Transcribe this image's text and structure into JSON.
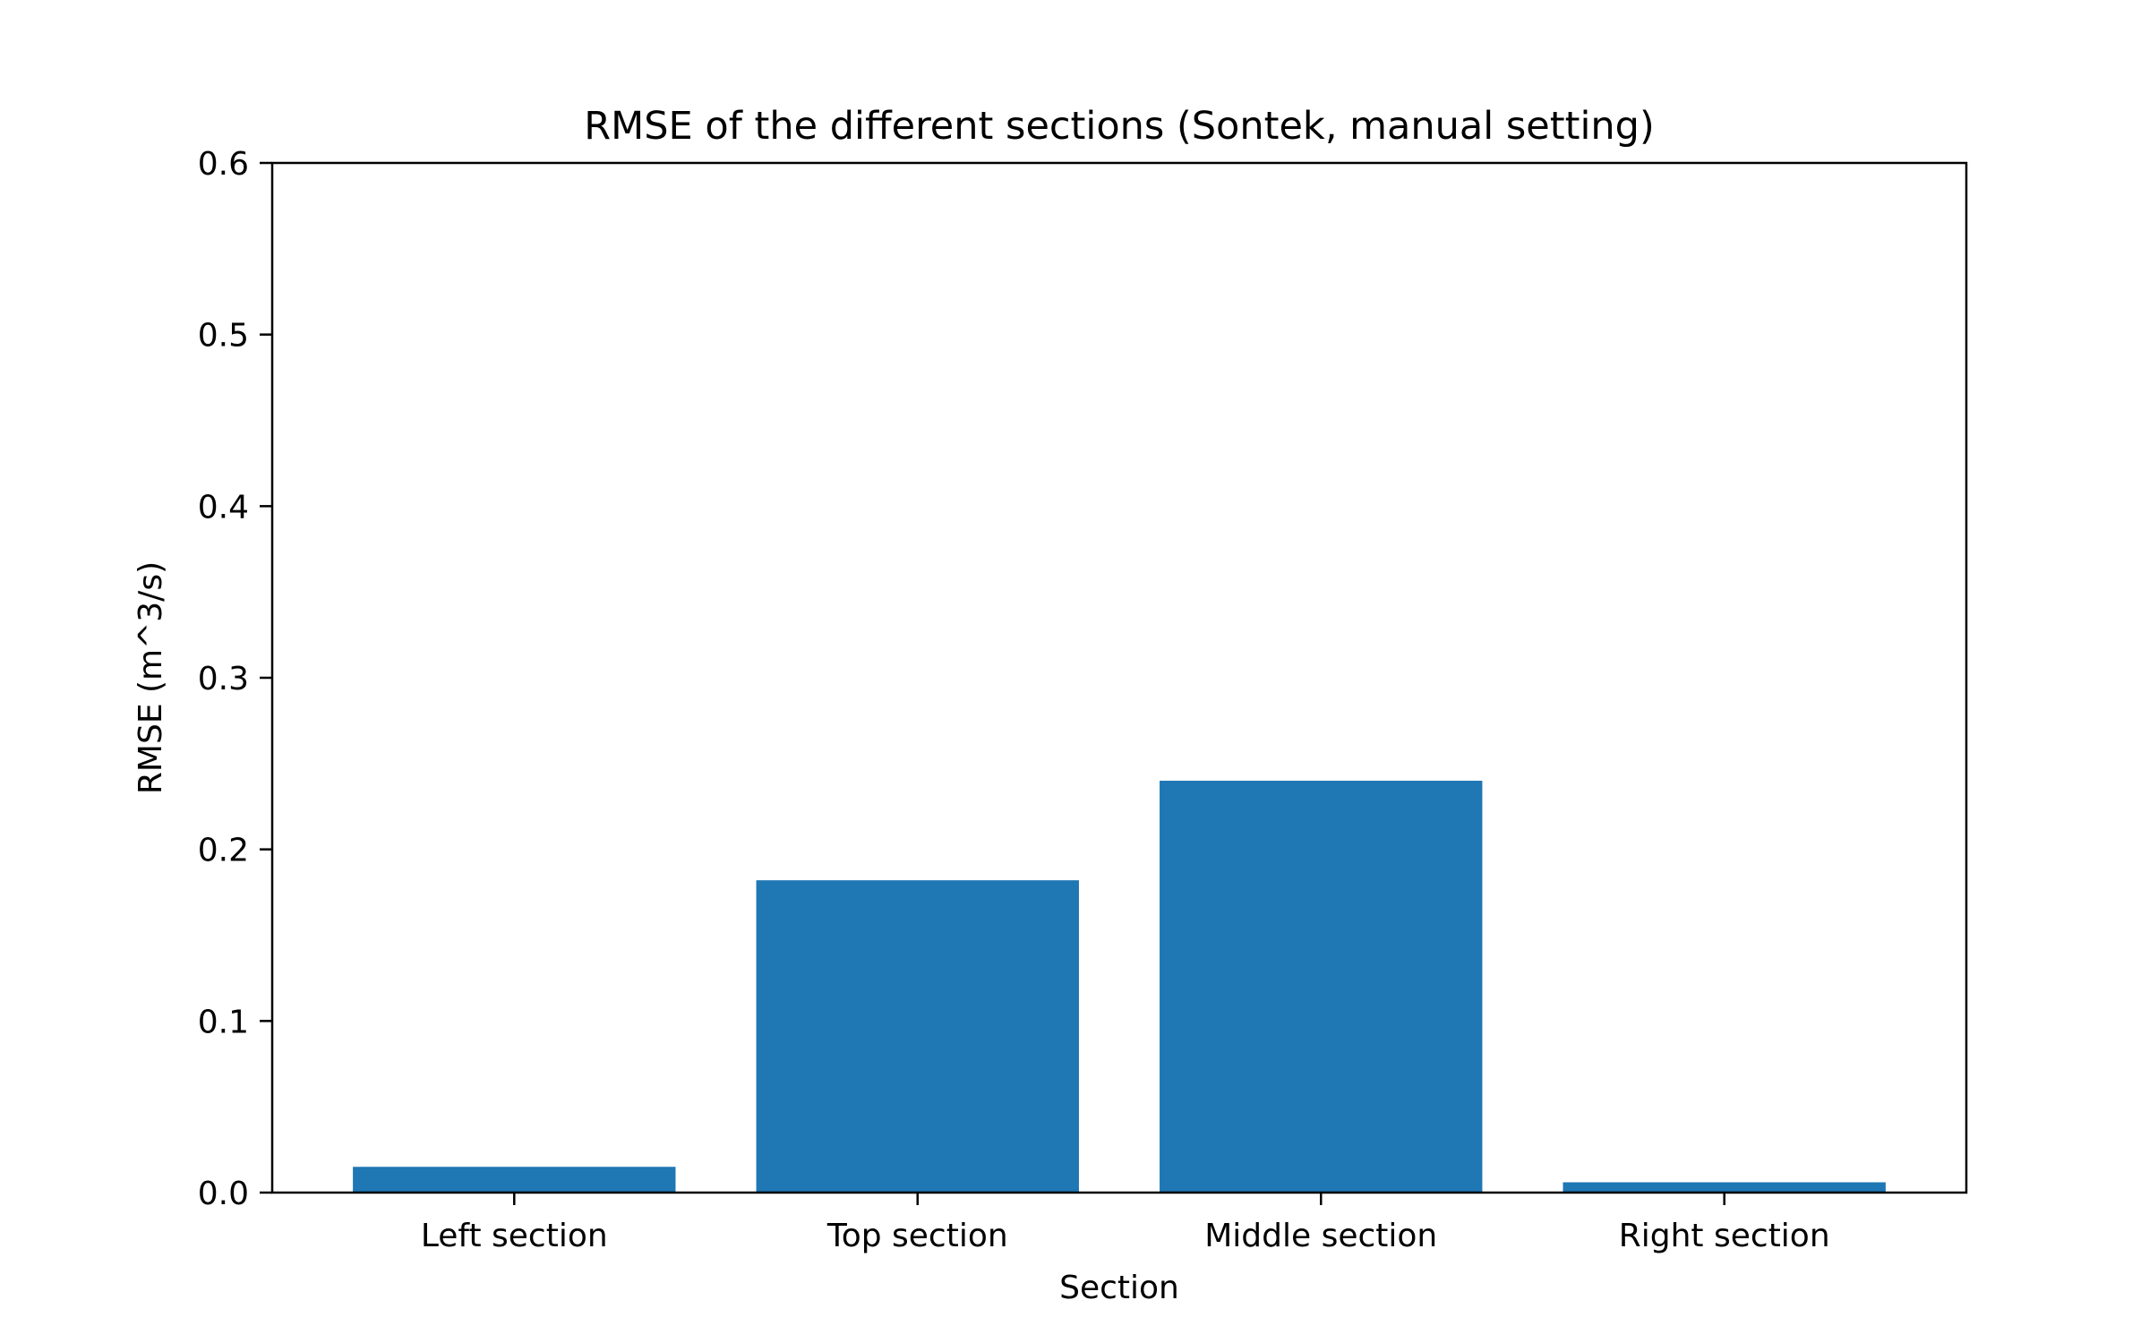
{
  "chart_data": {
    "type": "bar",
    "title": "RMSE of the different sections (Sontek, manual setting)",
    "xlabel": "Section",
    "ylabel": "RMSE (m^3/s)",
    "categories": [
      "Left section",
      "Top section",
      "Middle section",
      "Right section"
    ],
    "values": [
      0.015,
      0.182,
      0.24,
      0.006
    ],
    "ylim": [
      0,
      0.6
    ],
    "yticks": [
      "0.0",
      "0.1",
      "0.2",
      "0.3",
      "0.4",
      "0.5",
      "0.6"
    ],
    "bar_color": "#1f77b4",
    "grid": false,
    "legend": "none"
  }
}
